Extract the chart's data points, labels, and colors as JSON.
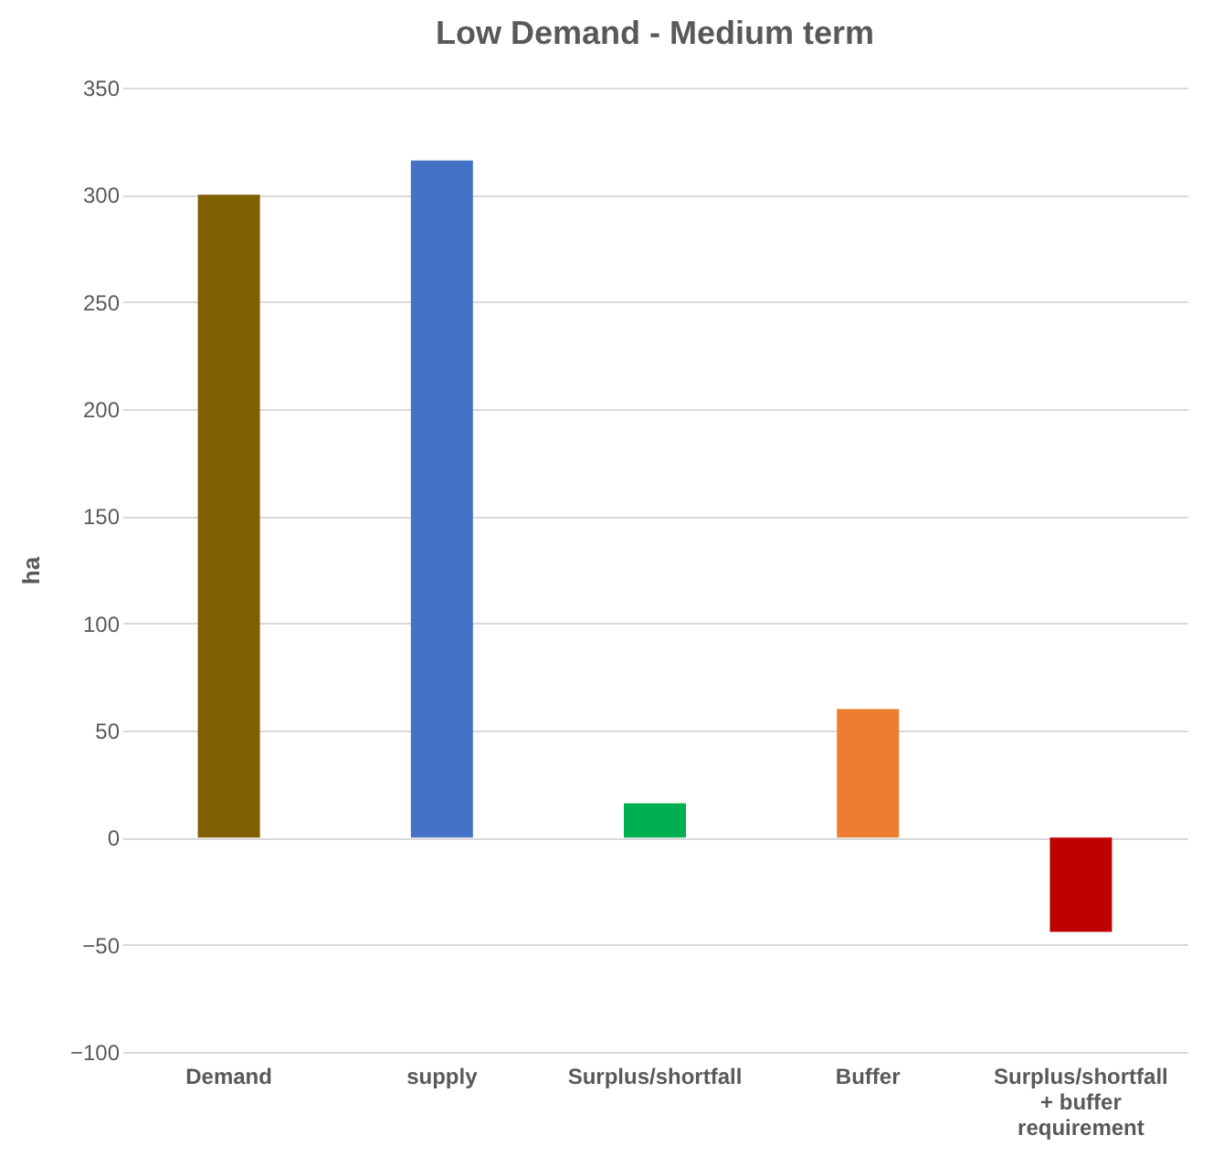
{
  "chart_data": {
    "type": "bar",
    "title": "Low Demand - Medium term",
    "ylabel": "ha",
    "categories": [
      "Demand",
      "supply",
      "Surplus/shortfall",
      "Buffer",
      "Surplus/shortfall + buffer requirement"
    ],
    "values": [
      300,
      316,
      16,
      60,
      -44
    ],
    "colors": [
      "#7f6000",
      "#4472c4",
      "#00b050",
      "#ed7d31",
      "#c00000"
    ],
    "ylim": [
      -100,
      350
    ],
    "yticks": [
      -100,
      -50,
      0,
      50,
      100,
      150,
      200,
      250,
      300,
      350
    ],
    "grid": "y"
  }
}
